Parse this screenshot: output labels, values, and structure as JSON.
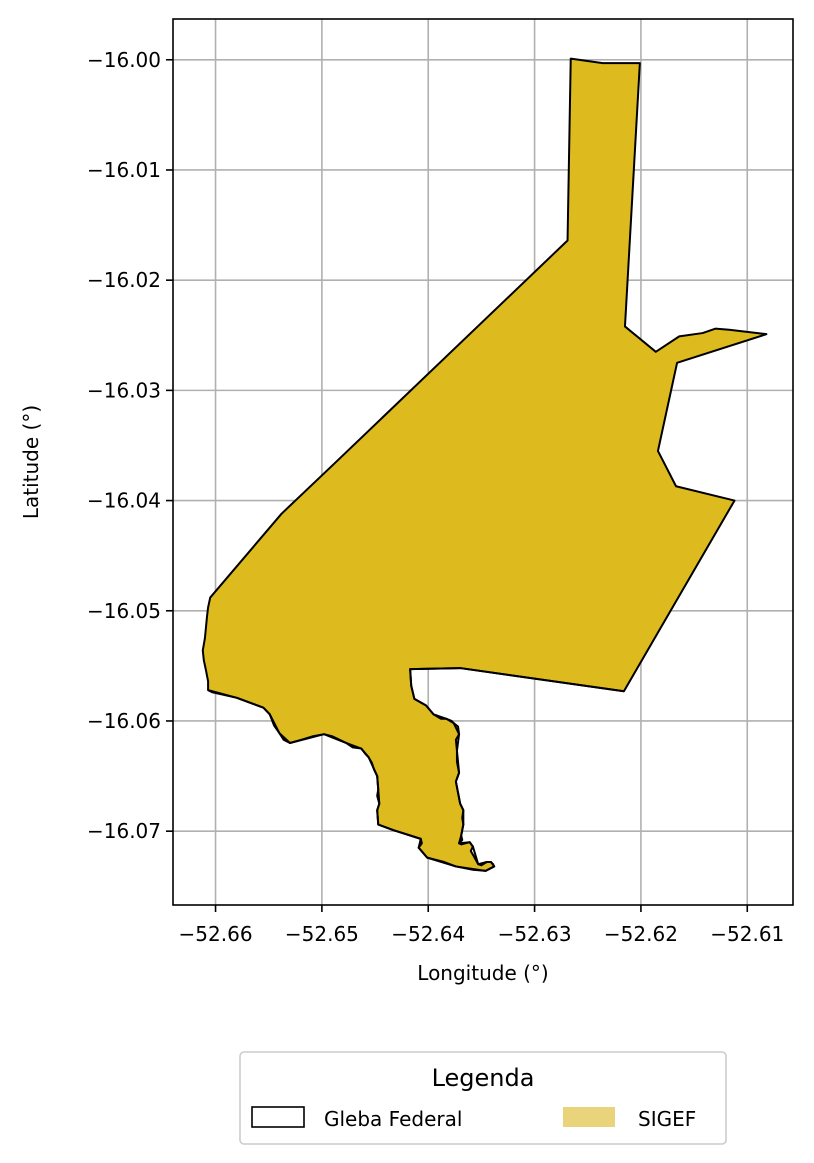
{
  "chart_data": {
    "type": "map",
    "xlabel": "Longitude (°)",
    "ylabel": "Latitude (°)",
    "xlim": [
      -52.664,
      -52.6057
    ],
    "ylim": [
      -16.0767,
      -15.9963
    ],
    "grid": true,
    "x_ticks": [
      -52.66,
      -52.65,
      -52.64,
      -52.63,
      -52.62,
      -52.61
    ],
    "x_tick_labels": [
      "−52.66",
      "−52.65",
      "−52.64",
      "−52.63",
      "−52.62",
      "−52.61"
    ],
    "y_ticks": [
      -16.0,
      -16.01,
      -16.02,
      -16.03,
      -16.04,
      -16.05,
      -16.06,
      -16.07
    ],
    "y_tick_labels": [
      "−16.00",
      "−16.01",
      "−16.02",
      "−16.03",
      "−16.04",
      "−16.05",
      "−16.06",
      "−16.07"
    ],
    "legend": {
      "title": "Legenda",
      "placement": "bottom-center",
      "entries": [
        {
          "label": "Gleba Federal",
          "style": "outline",
          "color": "#000000"
        },
        {
          "label": "SIGEF",
          "style": "fill",
          "color": "#e9d47c"
        }
      ]
    },
    "series": [
      {
        "name": "SIGEF",
        "fill": "#ddbb1f",
        "stroke": "#000000",
        "polygon": [
          [
            -52.6266,
            -15.9999
          ],
          [
            -52.6236,
            -16.0003
          ],
          [
            -52.6201,
            -16.0003
          ],
          [
            -52.6215,
            -16.0242
          ],
          [
            -52.6186,
            -16.0265
          ],
          [
            -52.6164,
            -16.0251
          ],
          [
            -52.6142,
            -16.0248
          ],
          [
            -52.613,
            -16.0244
          ],
          [
            -52.6117,
            -16.0245
          ],
          [
            -52.6082,
            -16.0249
          ],
          [
            -52.6166,
            -16.0275
          ],
          [
            -52.6184,
            -16.0355
          ],
          [
            -52.6167,
            -16.0387
          ],
          [
            -52.6112,
            -16.04
          ],
          [
            -52.6216,
            -16.0573
          ],
          [
            -52.637,
            -16.0552
          ],
          [
            -52.6417,
            -16.0553
          ],
          [
            -52.6416,
            -16.0568
          ],
          [
            -52.6413,
            -16.058
          ],
          [
            -52.6402,
            -16.0586
          ],
          [
            -52.6395,
            -16.0594
          ],
          [
            -52.6388,
            -16.0598
          ],
          [
            -52.6383,
            -16.0598
          ],
          [
            -52.6378,
            -16.06
          ],
          [
            -52.6376,
            -16.0602
          ],
          [
            -52.6372,
            -16.0605
          ],
          [
            -52.6371,
            -16.0612
          ],
          [
            -52.6374,
            -16.0617
          ],
          [
            -52.6373,
            -16.0627
          ],
          [
            -52.6373,
            -16.0637
          ],
          [
            -52.6371,
            -16.0647
          ],
          [
            -52.6374,
            -16.0655
          ],
          [
            -52.6372,
            -16.0665
          ],
          [
            -52.637,
            -16.0675
          ],
          [
            -52.6367,
            -16.0681
          ],
          [
            -52.6368,
            -16.0688
          ],
          [
            -52.6367,
            -16.0694
          ],
          [
            -52.6369,
            -16.0704
          ],
          [
            -52.6368,
            -16.0708
          ],
          [
            -52.6371,
            -16.0711
          ],
          [
            -52.6369,
            -16.0712
          ],
          [
            -52.6361,
            -16.071
          ],
          [
            -52.6358,
            -16.0714
          ],
          [
            -52.636,
            -16.0718
          ],
          [
            -52.6357,
            -16.0723
          ],
          [
            -52.6353,
            -16.073
          ],
          [
            -52.635,
            -16.0731
          ],
          [
            -52.6345,
            -16.0728
          ],
          [
            -52.6341,
            -16.0728
          ],
          [
            -52.6339,
            -16.073
          ],
          [
            -52.6338,
            -16.0732
          ],
          [
            -52.6346,
            -16.0736
          ],
          [
            -52.6358,
            -16.0735
          ],
          [
            -52.6374,
            -16.0732
          ],
          [
            -52.6385,
            -16.0728
          ],
          [
            -52.6401,
            -16.0724
          ],
          [
            -52.6409,
            -16.0715
          ],
          [
            -52.6406,
            -16.0711
          ],
          [
            -52.6407,
            -16.0707
          ],
          [
            -52.6433,
            -16.0699
          ],
          [
            -52.6447,
            -16.0694
          ],
          [
            -52.6448,
            -16.0681
          ],
          [
            -52.6446,
            -16.0675
          ],
          [
            -52.6448,
            -16.0668
          ],
          [
            -52.6447,
            -16.0662
          ],
          [
            -52.6448,
            -16.065
          ],
          [
            -52.6451,
            -16.0644
          ],
          [
            -52.6453,
            -16.0638
          ],
          [
            -52.6456,
            -16.0633
          ],
          [
            -52.6459,
            -16.063
          ],
          [
            -52.6463,
            -16.0625
          ],
          [
            -52.6471,
            -16.0624
          ],
          [
            -52.6477,
            -16.062
          ],
          [
            -52.649,
            -16.0614
          ],
          [
            -52.6498,
            -16.0612
          ],
          [
            -52.6509,
            -16.0614
          ],
          [
            -52.6519,
            -16.0617
          ],
          [
            -52.653,
            -16.062
          ],
          [
            -52.6536,
            -16.0617
          ],
          [
            -52.654,
            -16.0611
          ],
          [
            -52.6545,
            -16.0604
          ],
          [
            -52.6549,
            -16.0594
          ],
          [
            -52.6555,
            -16.0588
          ],
          [
            -52.658,
            -16.0579
          ],
          [
            -52.6603,
            -16.0574
          ],
          [
            -52.6607,
            -16.0572
          ],
          [
            -52.6607,
            -16.0564
          ],
          [
            -52.6609,
            -16.0554
          ],
          [
            -52.6611,
            -16.0545
          ],
          [
            -52.6612,
            -16.0536
          ],
          [
            -52.661,
            -16.0525
          ],
          [
            -52.6609,
            -16.0515
          ],
          [
            -52.6608,
            -16.0505
          ],
          [
            -52.6607,
            -16.0497
          ],
          [
            -52.6605,
            -16.0488
          ],
          [
            -52.6538,
            -16.0412
          ],
          [
            -52.649,
            -16.0368
          ],
          [
            -52.6269,
            -16.0164
          ],
          [
            -52.6266,
            -15.9999
          ]
        ],
        "southern_edge": [
          [
            -52.6216,
            -16.0573
          ],
          [
            -52.637,
            -16.0552
          ],
          [
            -52.6417,
            -16.0553
          ],
          [
            -52.6416,
            -16.0568
          ],
          [
            -52.6413,
            -16.058
          ],
          [
            -52.6402,
            -16.0586
          ],
          [
            -52.6395,
            -16.0594
          ],
          [
            -52.6383,
            -16.0598
          ],
          [
            -52.6376,
            -16.0602
          ],
          [
            -52.6371,
            -16.0612
          ],
          [
            -52.6373,
            -16.0627
          ],
          [
            -52.6371,
            -16.0647
          ],
          [
            -52.6374,
            -16.0655
          ],
          [
            -52.637,
            -16.0675
          ],
          [
            -52.6367,
            -16.0681
          ],
          [
            -52.6367,
            -16.0694
          ],
          [
            -52.6369,
            -16.0704
          ],
          [
            -52.6371,
            -16.0711
          ],
          [
            -52.6361,
            -16.071
          ],
          [
            -52.6358,
            -16.0714
          ],
          [
            -52.6353,
            -16.073
          ],
          [
            -52.6345,
            -16.0728
          ],
          [
            -52.6341,
            -16.0728
          ],
          [
            -52.6338,
            -16.0732
          ],
          [
            -52.6346,
            -16.0736
          ],
          [
            -52.6374,
            -16.0732
          ],
          [
            -52.6401,
            -16.0724
          ],
          [
            -52.6409,
            -16.0715
          ],
          [
            -52.6407,
            -16.0707
          ],
          [
            -52.6433,
            -16.0699
          ],
          [
            -52.6447,
            -16.0694
          ],
          [
            -52.6448,
            -16.0681
          ],
          [
            -52.6446,
            -16.0675
          ],
          [
            -52.6448,
            -16.065
          ],
          [
            -52.6456,
            -16.0633
          ],
          [
            -52.6463,
            -16.0625
          ],
          [
            -52.6477,
            -16.062
          ],
          [
            -52.6498,
            -16.0612
          ],
          [
            -52.653,
            -16.062
          ],
          [
            -52.654,
            -16.0611
          ],
          [
            -52.6549,
            -16.0594
          ],
          [
            -52.6555,
            -16.0588
          ],
          [
            -52.658,
            -16.0579
          ],
          [
            -52.6607,
            -16.0572
          ]
        ]
      }
    ]
  }
}
